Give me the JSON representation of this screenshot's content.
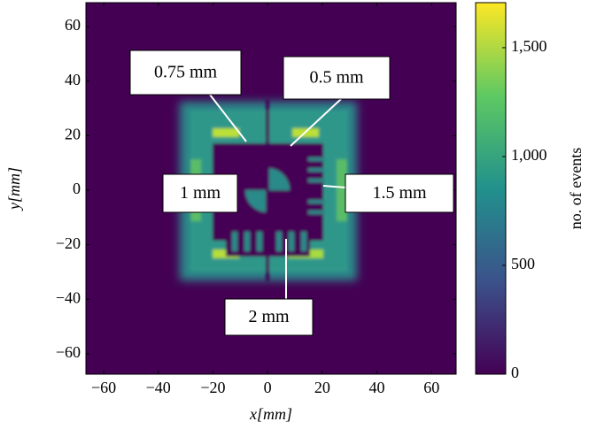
{
  "chart_data": {
    "type": "heatmap",
    "xlabel": "x[mm]",
    "ylabel": "y[mm]",
    "xlim": [
      -66.5,
      69
    ],
    "ylim": [
      -67.5,
      68.8
    ],
    "xticks": [
      {
        "value": -60,
        "label": "−60"
      },
      {
        "value": -40,
        "label": "−40"
      },
      {
        "value": -20,
        "label": "−20"
      },
      0,
      20,
      40,
      60
    ],
    "yticks": [
      {
        "value": -60,
        "label": "−60"
      },
      {
        "value": -40,
        "label": "−40"
      },
      {
        "value": -20,
        "label": "−20"
      },
      0,
      20,
      40,
      60
    ],
    "colorbar": {
      "label": "no. of events",
      "lim": [
        0,
        1707
      ],
      "ticks": [
        0,
        500,
        {
          "value": 1000,
          "label": "1,000"
        },
        {
          "value": 1500,
          "label": "1,500"
        }
      ],
      "colormap": [
        "#440154",
        "#3b528b",
        "#21918c",
        "#5ec962",
        "#fde725"
      ]
    },
    "annotations": [
      "0.75 mm",
      "0.5 mm",
      "1 mm",
      "1.5 mm",
      "2 mm"
    ]
  }
}
